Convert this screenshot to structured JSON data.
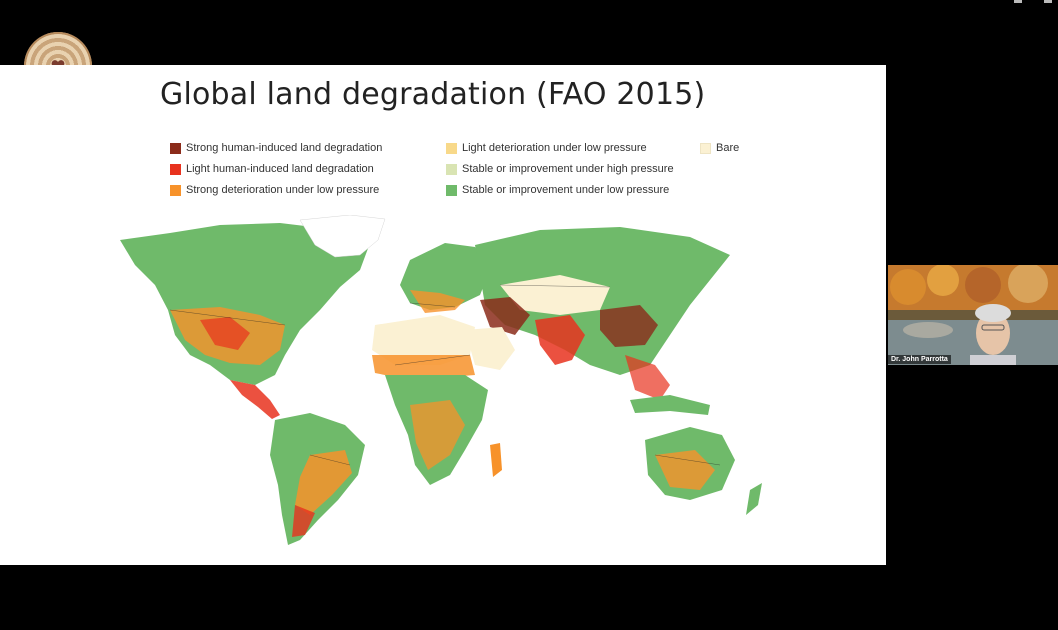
{
  "slide": {
    "title": "Global land degradation (FAO 2015)",
    "legend": [
      {
        "label": "Strong human-induced land degradation",
        "color": "#8b2b1a"
      },
      {
        "label": "Light human-induced land degradation",
        "color": "#e8321e"
      },
      {
        "label": "Strong deterioration under low pressure",
        "color": "#f7922a"
      },
      {
        "label": "Light deterioration under low pressure",
        "color": "#f8d98a"
      },
      {
        "label": "Stable or improvement under high pressure",
        "color": "#d9e4b3"
      },
      {
        "label": "Stable or improvement under low pressure",
        "color": "#6fba6a"
      },
      {
        "label": "Bare",
        "color": "#fbf1d3"
      }
    ]
  },
  "participant": {
    "name": "Dr. John Parrotta"
  },
  "icons": {
    "host_logo": "concentric-rings-heart-logo",
    "window_controls": "window-control-icons"
  }
}
